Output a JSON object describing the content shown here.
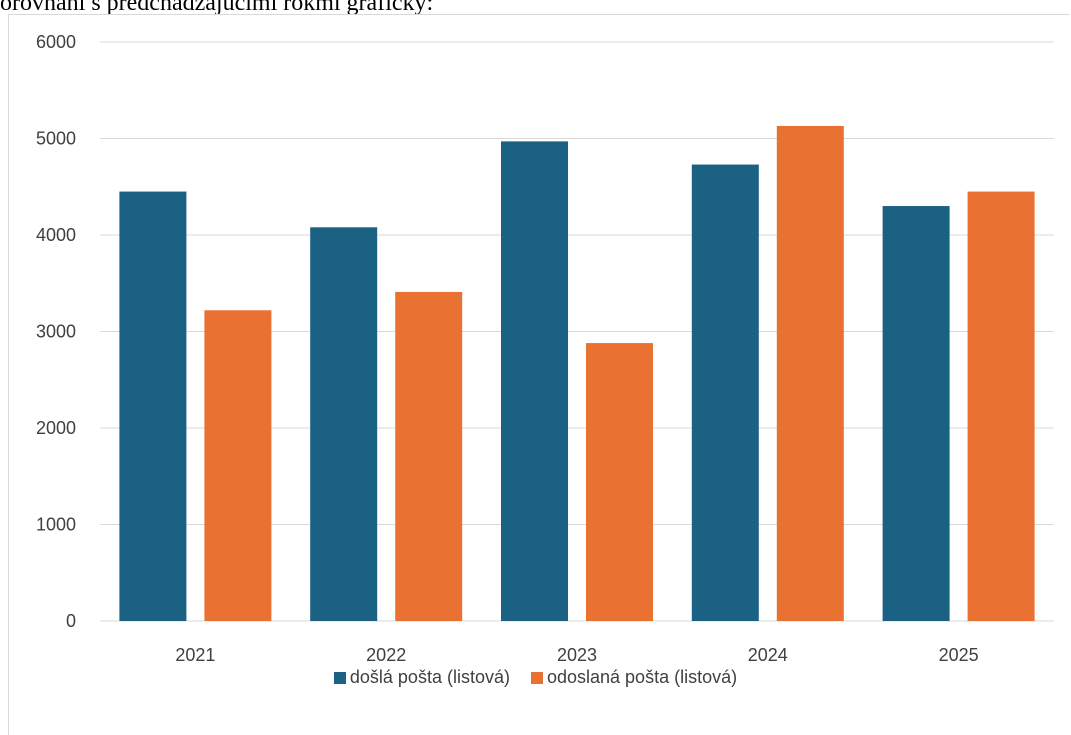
{
  "caption": {
    "text": "orovnaní s predchádzajúcimi rokmi graficky:"
  },
  "chart_data": {
    "type": "bar",
    "title": "",
    "xlabel": "",
    "ylabel": "",
    "categories": [
      "2021",
      "2022",
      "2023",
      "2024",
      "2025"
    ],
    "series": [
      {
        "name": "došlá pošta (listová)",
        "color": "#1a6184",
        "values": [
          4450,
          4080,
          4970,
          4730,
          4300
        ]
      },
      {
        "name": "odoslaná pošta (listová)",
        "color": "#e97132",
        "values": [
          3220,
          3410,
          2880,
          5130,
          4450
        ]
      }
    ],
    "ylim": [
      0,
      6000
    ],
    "yticks": [
      "0",
      "1000",
      "2000",
      "3000",
      "4000",
      "5000",
      "6000"
    ],
    "grid": true,
    "gridline_color": "#d9d9d9",
    "legend_position": "bottom"
  }
}
